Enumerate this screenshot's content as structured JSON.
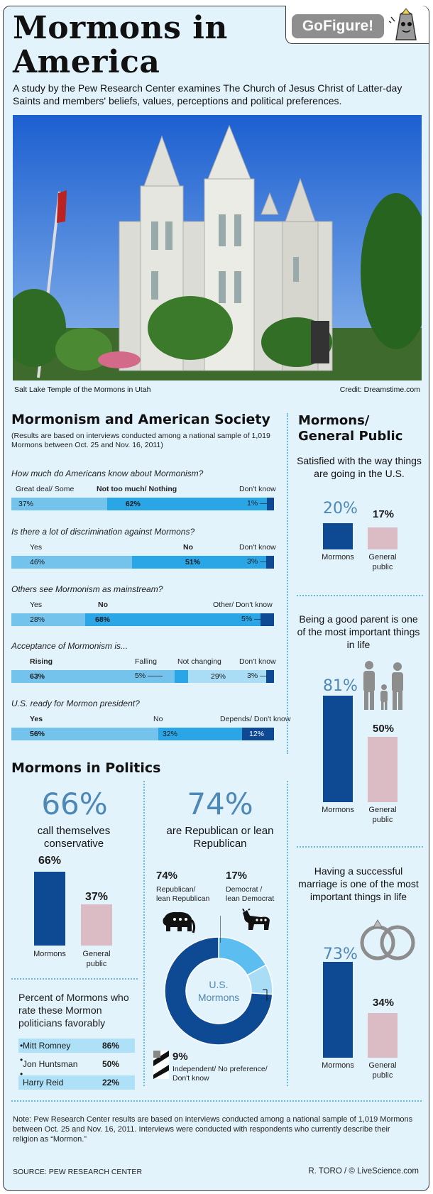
{
  "header": {
    "title_line1": "Mormons in",
    "title_line2": "America",
    "badge_go": "Go",
    "badge_figure": "Figure!",
    "intro": "A study by the Pew Research Center examines The Church of Jesus Christ of Latter-day Saints and members' beliefs, values, perceptions and political preferences."
  },
  "photo": {
    "caption": "Salt Lake Temple of the Mormons in Utah",
    "credit": "Credit: Dreamstime.com"
  },
  "society": {
    "heading": "Mormonism and American Society",
    "note": "(Results are based on interviews conducted among a national sample of 1,019 Mormons between Oct. 25 and Nov. 16, 2011)"
  },
  "colors": {
    "light_blue": "#74c3ec",
    "mid_blue": "#2aa6e6",
    "navy": "#0d4a93",
    "pink": "#dcbcc4",
    "accent_number": "#4d88b6",
    "background": "#e3f3fb"
  },
  "chart_data": [
    {
      "type": "bar",
      "orientation": "stacked-horizontal",
      "title": "How much do Americans know about Mormonism?",
      "categories": [
        "Great deal/ Some",
        "Not too much/ Nothing",
        "Don't know"
      ],
      "values": [
        37,
        62,
        1
      ],
      "value_labels": [
        "37%",
        "62%",
        "1%"
      ]
    },
    {
      "type": "bar",
      "orientation": "stacked-horizontal",
      "title": "Is there a lot of discrimination against Mormons?",
      "categories": [
        "Yes",
        "No",
        "Don't know"
      ],
      "values": [
        46,
        51,
        3
      ],
      "value_labels": [
        "46%",
        "51%",
        "3%"
      ]
    },
    {
      "type": "bar",
      "orientation": "stacked-horizontal",
      "title": "Others see Mormonism as mainstream?",
      "categories": [
        "Yes",
        "No",
        "Other/ Don't know"
      ],
      "values": [
        28,
        68,
        5
      ],
      "value_labels": [
        "28%",
        "68%",
        "5%"
      ]
    },
    {
      "type": "bar",
      "orientation": "stacked-horizontal",
      "title": "Acceptance of Mormonism is...",
      "categories": [
        "Rising",
        "Falling",
        "Not changing",
        "Don't know"
      ],
      "values": [
        63,
        5,
        29,
        3
      ],
      "value_labels": [
        "63%",
        "5%",
        "29%",
        "3%"
      ]
    },
    {
      "type": "bar",
      "orientation": "stacked-horizontal",
      "title": "U.S. ready for Mormon president?",
      "categories": [
        "Yes",
        "No",
        "Depends/ Don't know"
      ],
      "values": [
        56,
        32,
        12
      ],
      "value_labels": [
        "56%",
        "32%",
        "12%"
      ]
    },
    {
      "type": "bar",
      "title": "Satisfied with the way things are going in the U.S.",
      "categories": [
        "Mormons",
        "General public"
      ],
      "values": [
        20,
        17
      ],
      "value_labels": [
        "20%",
        "17%"
      ]
    },
    {
      "type": "bar",
      "title": "Being a good parent is one of the most important things in life",
      "categories": [
        "Mormons",
        "General public"
      ],
      "values": [
        81,
        50
      ],
      "value_labels": [
        "81%",
        "50%"
      ]
    },
    {
      "type": "bar",
      "title": "Having a successful marriage is one of the most important things in life",
      "categories": [
        "Mormons",
        "General public"
      ],
      "values": [
        73,
        34
      ],
      "value_labels": [
        "73%",
        "34%"
      ]
    },
    {
      "type": "bar",
      "title": "call themselves conservative",
      "categories": [
        "Mormons",
        "General public"
      ],
      "values": [
        66,
        37
      ],
      "value_labels": [
        "66%",
        "37%"
      ]
    },
    {
      "type": "pie",
      "title": "U.S. Mormons",
      "categories": [
        "Republican/ lean Republican",
        "Democrat / lean Democrat",
        "Independent/ No preference/ Don't know"
      ],
      "values": [
        74,
        17,
        9
      ],
      "value_labels": [
        "74%",
        "17%",
        "9%"
      ]
    },
    {
      "type": "table",
      "title": "Percent of Mormons who rate these Mormon politicians favorably",
      "rows": [
        {
          "name": "Mitt Romney",
          "value": 86,
          "label": "86%"
        },
        {
          "name": "Jon Huntsman",
          "value": 50,
          "label": "50%"
        },
        {
          "name": "Harry Reid",
          "value": 22,
          "label": "22%"
        }
      ]
    }
  ],
  "general_public": {
    "heading_line1": "Mormons/",
    "heading_line2": "General Public",
    "satisfied_title": "Satisfied with the way things are going in the U.S.",
    "parent_title": "Being a good parent is one of the most important things in life",
    "marriage_title": "Having a successful marriage is one of the most important things in life",
    "mormons_label": "Mormons",
    "general_line1": "General",
    "general_line2": "public"
  },
  "politics": {
    "heading": "Mormons in Politics",
    "conservative_big": "66%",
    "conservative_text": "call themselves conservative",
    "republican_big": "74%",
    "republican_text": "are Republican or lean Republican",
    "rep_pct": "74%",
    "rep_label_1": "Republican/",
    "rep_label_2": "lean Republican",
    "dem_pct": "17%",
    "dem_label_1": "Democrat /",
    "dem_label_2": "lean Democrat",
    "ind_pct": "9%",
    "ind_label_1": "Independent/ No preference/",
    "ind_label_2": "Don't know",
    "donut_center_1": "U.S.",
    "donut_center_2": "Mormons",
    "favor_title": "Percent of Mormons who rate these Mormon politicians favorably",
    "icons": [
      "elephant-icon",
      "donkey-icon",
      "family-icon",
      "rings-icon",
      "pencil-icon"
    ]
  },
  "footer": {
    "note": "Note: Pew Research Center results are based on interviews conducted among a national sample of 1,019 Mormons between Oct. 25 and Nov. 16, 2011. Interviews were conducted with respondents who currently describe their religion as “Mormon.”",
    "source": "SOURCE: PEW RESEARCH CENTER",
    "credit": "R. TORO / © LiveScience.com"
  }
}
